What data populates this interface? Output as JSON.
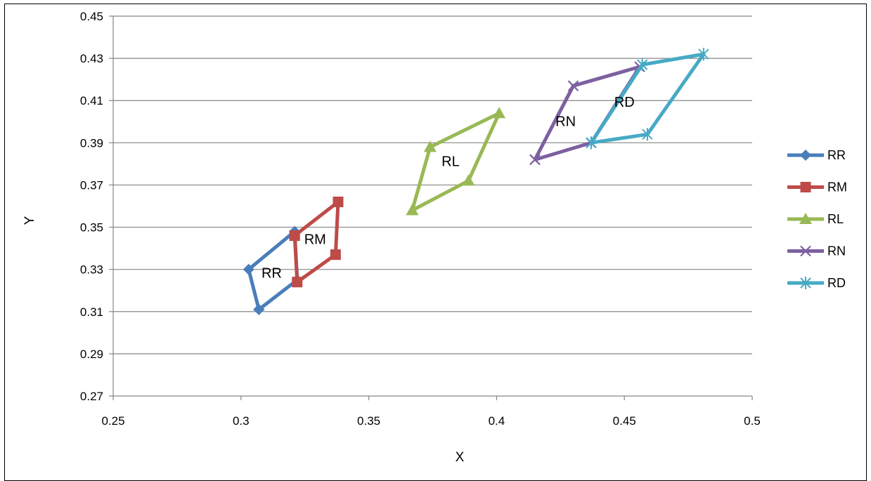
{
  "chart_data": {
    "type": "scatter",
    "title": "",
    "xlabel": "X",
    "ylabel": "Y",
    "xlim": [
      0.25,
      0.5
    ],
    "ylim": [
      0.27,
      0.45
    ],
    "x_ticks": [
      "0.25",
      "0.3",
      "0.35",
      "0.4",
      "0.45",
      "0.5"
    ],
    "y_ticks": [
      "0.27",
      "0.29",
      "0.31",
      "0.33",
      "0.35",
      "0.37",
      "0.39",
      "0.41",
      "0.43",
      "0.45"
    ],
    "grid": "horizontal",
    "legend_position": "right",
    "series": [
      {
        "name": "RR",
        "color": "#4a7ebb",
        "marker": "diamond",
        "points": [
          [
            0.307,
            0.311
          ],
          [
            0.303,
            0.33
          ],
          [
            0.321,
            0.348
          ],
          [
            0.322,
            0.325
          ],
          [
            0.307,
            0.311
          ]
        ]
      },
      {
        "name": "RM",
        "color": "#be4b48",
        "marker": "square",
        "points": [
          [
            0.321,
            0.346
          ],
          [
            0.338,
            0.362
          ],
          [
            0.337,
            0.337
          ],
          [
            0.322,
            0.324
          ],
          [
            0.321,
            0.346
          ]
        ]
      },
      {
        "name": "RL",
        "color": "#98b954",
        "marker": "triangle",
        "points": [
          [
            0.367,
            0.358
          ],
          [
            0.374,
            0.388
          ],
          [
            0.401,
            0.404
          ],
          [
            0.389,
            0.372
          ],
          [
            0.367,
            0.358
          ]
        ]
      },
      {
        "name": "RN",
        "color": "#7d60a0",
        "marker": "x",
        "points": [
          [
            0.415,
            0.382
          ],
          [
            0.43,
            0.417
          ],
          [
            0.456,
            0.426
          ],
          [
            0.437,
            0.39
          ],
          [
            0.415,
            0.382
          ]
        ]
      },
      {
        "name": "RD",
        "color": "#46aac5",
        "marker": "star",
        "points": [
          [
            0.437,
            0.39
          ],
          [
            0.457,
            0.427
          ],
          [
            0.481,
            0.432
          ],
          [
            0.459,
            0.394
          ],
          [
            0.437,
            0.39
          ]
        ]
      }
    ],
    "annotations": [
      {
        "text": "RR",
        "x": 0.312,
        "y": 0.326
      },
      {
        "text": "RM",
        "x": 0.329,
        "y": 0.342
      },
      {
        "text": "RL",
        "x": 0.382,
        "y": 0.379
      },
      {
        "text": "RN",
        "x": 0.427,
        "y": 0.398
      },
      {
        "text": "RD",
        "x": 0.45,
        "y": 0.407
      }
    ]
  }
}
